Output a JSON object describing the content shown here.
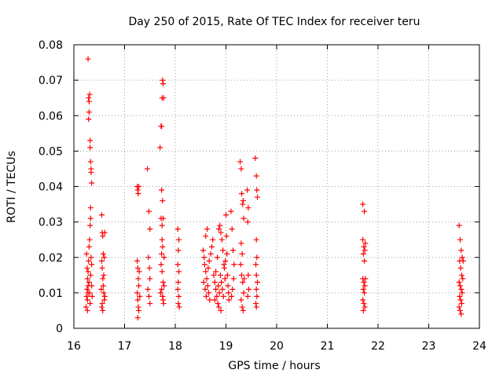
{
  "chart_data": {
    "type": "scatter",
    "title": "Day 250 of 2015, Rate Of TEC Index for receiver teru",
    "xlabel": "GPS time / hours",
    "ylabel": "ROTI / TECUs",
    "xlim": [
      16,
      24
    ],
    "ylim": [
      0,
      0.08
    ],
    "xticks": [
      "16",
      "17",
      "18",
      "19",
      "20",
      "21",
      "22",
      "23",
      "24"
    ],
    "yticks": [
      "0",
      "0.01",
      "0.02",
      "0.03",
      "0.04",
      "0.05",
      "0.06",
      "0.07",
      "0.08"
    ],
    "grid": true,
    "marker": "plus",
    "marker_color": "#ff0000",
    "series": [
      {
        "points": [
          [
            16.25,
            0.021
          ],
          [
            16.26,
            0.017
          ],
          [
            16.27,
            0.014
          ],
          [
            16.28,
            0.012
          ],
          [
            16.25,
            0.009
          ],
          [
            16.24,
            0.006
          ],
          [
            16.26,
            0.011
          ],
          [
            16.27,
            0.008
          ],
          [
            16.28,
            0.016
          ],
          [
            16.29,
            0.019
          ],
          [
            16.3,
            0.023
          ],
          [
            16.3,
            0.013
          ],
          [
            16.31,
            0.01
          ],
          [
            16.32,
            0.007
          ],
          [
            16.31,
            0.025
          ],
          [
            16.32,
            0.029
          ],
          [
            16.33,
            0.031
          ],
          [
            16.29,
            0.059
          ],
          [
            16.3,
            0.061
          ],
          [
            16.3,
            0.064
          ],
          [
            16.31,
            0.066
          ],
          [
            16.29,
            0.065
          ],
          [
            16.28,
            0.076
          ],
          [
            16.32,
            0.053
          ],
          [
            16.32,
            0.051
          ],
          [
            16.33,
            0.047
          ],
          [
            16.34,
            0.045
          ],
          [
            16.34,
            0.044
          ],
          [
            16.35,
            0.041
          ],
          [
            16.33,
            0.034
          ],
          [
            16.27,
            0.005
          ],
          [
            16.28,
            0.01
          ],
          [
            16.33,
            0.015
          ],
          [
            16.34,
            0.02
          ],
          [
            16.35,
            0.012
          ],
          [
            16.36,
            0.009
          ],
          [
            16.35,
            0.018
          ],
          [
            16.55,
            0.032
          ],
          [
            16.56,
            0.027
          ],
          [
            16.57,
            0.026
          ],
          [
            16.58,
            0.021
          ],
          [
            16.55,
            0.019
          ],
          [
            16.56,
            0.017
          ],
          [
            16.57,
            0.014
          ],
          [
            16.58,
            0.012
          ],
          [
            16.59,
            0.01
          ],
          [
            16.6,
            0.008
          ],
          [
            16.55,
            0.006
          ],
          [
            16.56,
            0.007
          ],
          [
            16.57,
            0.005
          ],
          [
            16.6,
            0.02
          ],
          [
            16.61,
            0.027
          ],
          [
            16.59,
            0.015
          ],
          [
            16.54,
            0.011
          ],
          [
            16.61,
            0.009
          ],
          [
            17.25,
            0.04
          ],
          [
            17.26,
            0.039
          ],
          [
            17.27,
            0.038
          ],
          [
            17.28,
            0.04
          ],
          [
            17.25,
            0.019
          ],
          [
            17.26,
            0.017
          ],
          [
            17.27,
            0.014
          ],
          [
            17.28,
            0.012
          ],
          [
            17.25,
            0.01
          ],
          [
            17.26,
            0.008
          ],
          [
            17.27,
            0.006
          ],
          [
            17.28,
            0.005
          ],
          [
            17.26,
            0.003
          ],
          [
            17.3,
            0.009
          ],
          [
            17.29,
            0.016
          ],
          [
            17.45,
            0.045
          ],
          [
            17.48,
            0.033
          ],
          [
            17.5,
            0.028
          ],
          [
            17.47,
            0.02
          ],
          [
            17.49,
            0.017
          ],
          [
            17.5,
            0.014
          ],
          [
            17.46,
            0.011
          ],
          [
            17.48,
            0.009
          ],
          [
            17.5,
            0.007
          ],
          [
            17.7,
            0.051
          ],
          [
            17.72,
            0.057
          ],
          [
            17.73,
            0.057
          ],
          [
            17.74,
            0.065
          ],
          [
            17.75,
            0.07
          ],
          [
            17.76,
            0.069
          ],
          [
            17.77,
            0.065
          ],
          [
            17.73,
            0.039
          ],
          [
            17.75,
            0.036
          ],
          [
            17.72,
            0.031
          ],
          [
            17.74,
            0.029
          ],
          [
            17.76,
            0.031
          ],
          [
            17.75,
            0.023
          ],
          [
            17.73,
            0.021
          ],
          [
            17.72,
            0.018
          ],
          [
            17.74,
            0.016
          ],
          [
            17.76,
            0.013
          ],
          [
            17.73,
            0.011
          ],
          [
            17.75,
            0.009
          ],
          [
            17.77,
            0.007
          ],
          [
            17.78,
            0.012
          ],
          [
            17.71,
            0.01
          ],
          [
            17.78,
            0.02
          ],
          [
            17.74,
            0.025
          ],
          [
            17.76,
            0.008
          ],
          [
            18.05,
            0.028
          ],
          [
            18.07,
            0.025
          ],
          [
            18.06,
            0.022
          ],
          [
            18.05,
            0.018
          ],
          [
            18.07,
            0.016
          ],
          [
            18.06,
            0.013
          ],
          [
            18.05,
            0.011
          ],
          [
            18.07,
            0.009
          ],
          [
            18.06,
            0.007
          ],
          [
            18.08,
            0.006
          ],
          [
            18.55,
            0.022
          ],
          [
            18.57,
            0.02
          ],
          [
            18.58,
            0.018
          ],
          [
            18.6,
            0.016
          ],
          [
            18.62,
            0.014
          ],
          [
            18.64,
            0.012
          ],
          [
            18.66,
            0.01
          ],
          [
            18.68,
            0.008
          ],
          [
            18.6,
            0.026
          ],
          [
            18.63,
            0.028
          ],
          [
            18.56,
            0.013
          ],
          [
            18.59,
            0.011
          ],
          [
            18.61,
            0.009
          ],
          [
            18.65,
            0.017
          ],
          [
            18.67,
            0.019
          ],
          [
            18.7,
            0.021
          ],
          [
            18.72,
            0.023
          ],
          [
            18.74,
            0.025
          ],
          [
            18.76,
            0.015
          ],
          [
            18.78,
            0.013
          ],
          [
            18.8,
            0.011
          ],
          [
            18.82,
            0.009
          ],
          [
            18.84,
            0.007
          ],
          [
            18.86,
            0.028
          ],
          [
            18.88,
            0.029
          ],
          [
            18.9,
            0.027
          ],
          [
            18.92,
            0.025
          ],
          [
            18.94,
            0.022
          ],
          [
            18.96,
            0.018
          ],
          [
            18.98,
            0.014
          ],
          [
            18.8,
            0.016
          ],
          [
            18.83,
            0.02
          ],
          [
            18.85,
            0.012
          ],
          [
            18.87,
            0.01
          ],
          [
            18.89,
            0.015
          ],
          [
            18.91,
            0.013
          ],
          [
            18.93,
            0.011
          ],
          [
            18.95,
            0.009
          ],
          [
            18.97,
            0.017
          ],
          [
            18.99,
            0.019
          ],
          [
            19.0,
            0.032
          ],
          [
            19.01,
            0.026
          ],
          [
            19.02,
            0.021
          ],
          [
            19.03,
            0.015
          ],
          [
            19.04,
            0.012
          ],
          [
            19.05,
            0.01
          ],
          [
            19.06,
            0.008
          ],
          [
            18.86,
            0.006
          ],
          [
            18.9,
            0.005
          ],
          [
            18.78,
            0.008
          ],
          [
            19.1,
            0.033
          ],
          [
            19.12,
            0.028
          ],
          [
            19.14,
            0.022
          ],
          [
            19.16,
            0.018
          ],
          [
            19.15,
            0.014
          ],
          [
            19.13,
            0.011
          ],
          [
            19.11,
            0.009
          ],
          [
            19.28,
            0.047
          ],
          [
            19.3,
            0.045
          ],
          [
            19.31,
            0.038
          ],
          [
            19.33,
            0.035
          ],
          [
            19.34,
            0.036
          ],
          [
            19.35,
            0.031
          ],
          [
            19.3,
            0.024
          ],
          [
            19.32,
            0.021
          ],
          [
            19.29,
            0.018
          ],
          [
            19.31,
            0.015
          ],
          [
            19.33,
            0.013
          ],
          [
            19.35,
            0.01
          ],
          [
            19.3,
            0.008
          ],
          [
            19.32,
            0.006
          ],
          [
            19.34,
            0.005
          ],
          [
            19.36,
            0.014
          ],
          [
            19.42,
            0.039
          ],
          [
            19.44,
            0.034
          ],
          [
            19.43,
            0.03
          ],
          [
            19.44,
            0.015
          ],
          [
            19.45,
            0.011
          ],
          [
            19.43,
            0.009
          ],
          [
            19.58,
            0.048
          ],
          [
            19.6,
            0.043
          ],
          [
            19.61,
            0.039
          ],
          [
            19.62,
            0.037
          ],
          [
            19.6,
            0.025
          ],
          [
            19.61,
            0.02
          ],
          [
            19.59,
            0.018
          ],
          [
            19.6,
            0.015
          ],
          [
            19.62,
            0.013
          ],
          [
            19.6,
            0.011
          ],
          [
            19.61,
            0.009
          ],
          [
            19.59,
            0.007
          ],
          [
            19.6,
            0.006
          ],
          [
            21.7,
            0.035
          ],
          [
            21.73,
            0.033
          ],
          [
            21.7,
            0.025
          ],
          [
            21.72,
            0.023
          ],
          [
            21.74,
            0.022
          ],
          [
            21.71,
            0.021
          ],
          [
            21.73,
            0.019
          ],
          [
            21.75,
            0.024
          ],
          [
            21.7,
            0.014
          ],
          [
            21.72,
            0.013
          ],
          [
            21.74,
            0.012
          ],
          [
            21.71,
            0.011
          ],
          [
            21.73,
            0.01
          ],
          [
            21.7,
            0.008
          ],
          [
            21.72,
            0.007
          ],
          [
            21.74,
            0.006
          ],
          [
            21.71,
            0.005
          ],
          [
            21.75,
            0.014
          ],
          [
            23.6,
            0.029
          ],
          [
            23.62,
            0.025
          ],
          [
            23.64,
            0.022
          ],
          [
            23.66,
            0.02
          ],
          [
            23.61,
            0.019
          ],
          [
            23.63,
            0.017
          ],
          [
            23.65,
            0.015
          ],
          [
            23.6,
            0.013
          ],
          [
            23.62,
            0.012
          ],
          [
            23.64,
            0.011
          ],
          [
            23.66,
            0.01
          ],
          [
            23.61,
            0.009
          ],
          [
            23.63,
            0.008
          ],
          [
            23.65,
            0.007
          ],
          [
            23.6,
            0.006
          ],
          [
            23.62,
            0.005
          ],
          [
            23.64,
            0.004
          ],
          [
            23.67,
            0.014
          ],
          [
            23.68,
            0.019
          ]
        ]
      }
    ]
  }
}
